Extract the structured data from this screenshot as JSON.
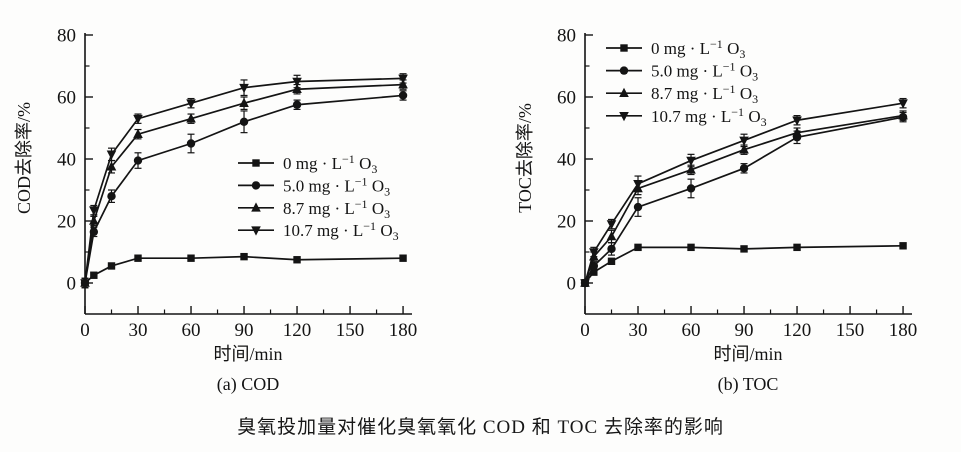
{
  "caption": "臭氧投加量对催化臭氧氧化 COD 和 TOC 去除率的影响",
  "colors": {
    "line": "#141414",
    "background": "#fdfdfc"
  },
  "chart_data": [
    {
      "type": "line",
      "id": "chart-a-cod",
      "subtitle": "(a) COD",
      "xlabel": "时间/min",
      "ylabel": "COD去除率/%",
      "xlim": [
        0,
        185
      ],
      "ylim": [
        -10,
        81
      ],
      "grid": "off",
      "legend_position": "middle-right-inside",
      "xticks_major": [
        0,
        30,
        60,
        90,
        120,
        150,
        180
      ],
      "xticks_minor": [
        15,
        45,
        75,
        105,
        135,
        165
      ],
      "yticks_major": [
        0,
        20,
        40,
        60,
        80
      ],
      "yticks_minor": [
        10,
        30,
        50,
        70
      ],
      "x": [
        0,
        5,
        15,
        30,
        60,
        90,
        120,
        180
      ],
      "series": [
        {
          "name": "0 mg·L⁻¹ O₃",
          "name_parts": [
            [
              "n",
              "0 mg · L"
            ],
            [
              "sup",
              "−1"
            ],
            [
              "n",
              " O"
            ],
            [
              "sub",
              "3"
            ]
          ],
          "marker": "square",
          "values": [
            0,
            2.5,
            5.5,
            8,
            8,
            8.5,
            7.5,
            8
          ],
          "errors": [
            1.5,
            0,
            0,
            0,
            0,
            0,
            0,
            0
          ]
        },
        {
          "name": "5.0 mg·L⁻¹ O₃",
          "name_parts": [
            [
              "n",
              "5.0 mg · L"
            ],
            [
              "sup",
              "−1"
            ],
            [
              "n",
              " O"
            ],
            [
              "sub",
              "3"
            ]
          ],
          "marker": "circle",
          "values": [
            0,
            16.5,
            28,
            39.5,
            45,
            52,
            57.5,
            60.5
          ],
          "errors": [
            1.5,
            1.5,
            2,
            2.5,
            3,
            3.5,
            1.5,
            1.5
          ]
        },
        {
          "name": "8.7 mg·L⁻¹ O₃",
          "name_parts": [
            [
              "n",
              "8.7 mg · L"
            ],
            [
              "sup",
              "−1"
            ],
            [
              "n",
              " O"
            ],
            [
              "sub",
              "3"
            ]
          ],
          "marker": "triangle-up",
          "values": [
            0,
            20,
            37.5,
            48,
            53,
            58,
            62.5,
            64
          ],
          "errors": [
            1.5,
            1.5,
            2,
            1.5,
            1.5,
            2,
            1.5,
            1.5
          ]
        },
        {
          "name": "10.7 mg·L⁻¹ O₃",
          "name_parts": [
            [
              "n",
              "10.7 mg · L"
            ],
            [
              "sup",
              "−1"
            ],
            [
              "n",
              " O"
            ],
            [
              "sub",
              "3"
            ]
          ],
          "marker": "triangle-down",
          "values": [
            0,
            23.5,
            41.5,
            53,
            58,
            63,
            65,
            66
          ],
          "errors": [
            1.5,
            1.5,
            2,
            1.5,
            1.5,
            2.5,
            2,
            1.5
          ]
        }
      ]
    },
    {
      "type": "line",
      "id": "chart-b-toc",
      "subtitle": "(b) TOC",
      "xlabel": "时间/min",
      "ylabel": "TOC去除率/%",
      "xlim": [
        0,
        185
      ],
      "ylim": [
        -10,
        81
      ],
      "grid": "off",
      "legend_position": "top-left-inside",
      "xticks_major": [
        0,
        30,
        60,
        90,
        120,
        150,
        180
      ],
      "xticks_minor": [
        15,
        45,
        75,
        105,
        135,
        165
      ],
      "yticks_major": [
        0,
        20,
        40,
        60,
        80
      ],
      "yticks_minor": [
        10,
        30,
        50,
        70
      ],
      "x": [
        0,
        5,
        15,
        30,
        60,
        90,
        120,
        180
      ],
      "series": [
        {
          "name": "0 mg·L⁻¹ O₃",
          "name_parts": [
            [
              "n",
              "0 mg · L"
            ],
            [
              "sup",
              "−1"
            ],
            [
              "n",
              " O"
            ],
            [
              "sub",
              "3"
            ]
          ],
          "marker": "square",
          "values": [
            0,
            3.5,
            7,
            11.5,
            11.5,
            11,
            11.5,
            12
          ],
          "errors": [
            1,
            0,
            0,
            0,
            0,
            0,
            0,
            0
          ]
        },
        {
          "name": "5.0 mg·L⁻¹ O₃",
          "name_parts": [
            [
              "n",
              "5.0 mg · L"
            ],
            [
              "sup",
              "−1"
            ],
            [
              "n",
              " O"
            ],
            [
              "sub",
              "3"
            ]
          ],
          "marker": "circle",
          "values": [
            0,
            5.5,
            11,
            24.5,
            30.5,
            37,
            47,
            53.5
          ],
          "errors": [
            1,
            1,
            2,
            3,
            3,
            1.5,
            2,
            1.5
          ]
        },
        {
          "name": "8.7 mg·L⁻¹ O₃",
          "name_parts": [
            [
              "n",
              "8.7 mg · L"
            ],
            [
              "sup",
              "−1"
            ],
            [
              "n",
              " O"
            ],
            [
              "sub",
              "3"
            ]
          ],
          "marker": "triangle-up",
          "values": [
            0,
            8.5,
            15,
            30.5,
            36.5,
            43,
            48.5,
            54
          ],
          "errors": [
            1,
            1.5,
            2,
            2,
            1.5,
            1.5,
            1.5,
            1.5
          ]
        },
        {
          "name": "10.7 mg·L⁻¹ O₃",
          "name_parts": [
            [
              "n",
              "10.7 mg · L"
            ],
            [
              "sup",
              "−1"
            ],
            [
              "n",
              " O"
            ],
            [
              "sub",
              "3"
            ]
          ],
          "marker": "triangle-down",
          "values": [
            0,
            10,
            19,
            32,
            39.5,
            46,
            52.5,
            58
          ],
          "errors": [
            1,
            1.5,
            1.5,
            2.5,
            2,
            2,
            1.5,
            1.5
          ]
        }
      ]
    }
  ]
}
